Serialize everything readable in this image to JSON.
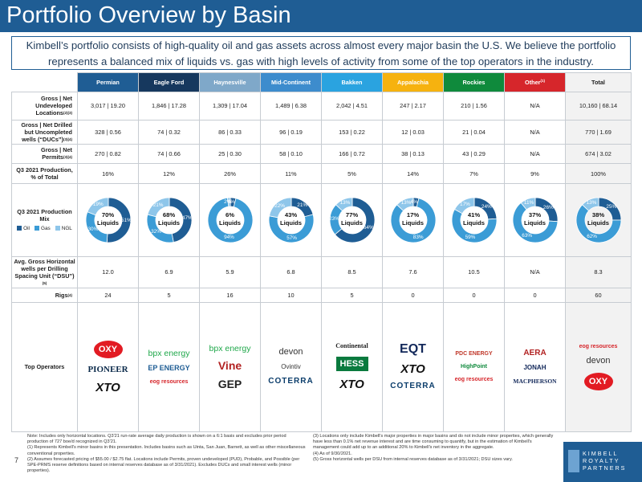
{
  "header": {
    "title": "Portfolio Overview by Basin"
  },
  "intro": "Kimbell’s portfolio consists of high-quality oil and gas assets across almost every major basin the U.S.  We believe the portfolio represents a balanced mix of liquids vs. gas with high levels of activity from some of the top operators in the industry.",
  "colors": {
    "title_bar": "#1f5d94",
    "oil": "#1f5d94",
    "gas": "#3b9cd6",
    "ngl": "#8ec6ea"
  },
  "basins": [
    {
      "name": "Permian",
      "color": "#1f5d94",
      "note": ""
    },
    {
      "name": "Eagle Ford",
      "color": "#16385e",
      "note": ""
    },
    {
      "name": "Haynesville",
      "color": "#7fa8c9",
      "note": ""
    },
    {
      "name": "Mid-Continent",
      "color": "#3d8ccd",
      "note": ""
    },
    {
      "name": "Bakken",
      "color": "#2aa3e0",
      "note": ""
    },
    {
      "name": "Appalachia",
      "color": "#f6b20f",
      "note": ""
    },
    {
      "name": "Rockies",
      "color": "#0f8a3c",
      "note": ""
    },
    {
      "name": "Other",
      "color": "#d6262b",
      "note": "(1)"
    }
  ],
  "total_label": "Total",
  "rows": {
    "undeveloped": {
      "label": "Gross | Net Undeveloped Locations",
      "note": "(2)(3)",
      "values": [
        "3,017 | 19.20",
        "1,846 | 17.28",
        "1,309 | 17.04",
        "1,489 | 6.38",
        "2,042 | 4.51",
        "247 | 2.17",
        "210 | 1.56",
        "N/A",
        "10,160 | 68.14"
      ]
    },
    "ducs": {
      "label": "Gross | Net Drilled but Uncompleted wells (“DUCs”)",
      "note": "(3)(4)",
      "values": [
        "328 | 0.56",
        "74 | 0.32",
        "86 | 0.33",
        "96 | 0.19",
        "153 | 0.22",
        "12 | 0.03",
        "21 | 0.04",
        "N/A",
        "770 | 1.69"
      ]
    },
    "permits": {
      "label": "Gross | Net Permits",
      "note": "(3)(4)",
      "values": [
        "270 | 0.82",
        "74 | 0.66",
        "25 | 0.30",
        "58 | 0.10",
        "166 | 0.72",
        "38 | 0.13",
        "43 | 0.29",
        "N/A",
        "674 | 3.02"
      ]
    },
    "production": {
      "label": "Q3 2021 Production, % of Total",
      "note": "",
      "values": [
        "16%",
        "12%",
        "26%",
        "11%",
        "5%",
        "14%",
        "7%",
        "9%",
        "100%"
      ]
    },
    "mix": {
      "label": "Q3 2021 Production Mix",
      "legend": [
        "Oil",
        "Gas",
        "NGL"
      ],
      "center_word": "Liquids",
      "items": [
        {
          "liquids": "70%",
          "oil": 51,
          "gas": 30,
          "ngl": 19,
          "oil_label": "51%",
          "gas_label": "30%",
          "ngl_label": "19%"
        },
        {
          "liquids": "68%",
          "oil": 47,
          "gas": 32,
          "ngl": 21,
          "oil_label": "47%",
          "gas_label": "32%",
          "ngl_label": "21%"
        },
        {
          "liquids": "6%",
          "oil": 4,
          "gas": 94,
          "ngl": 2,
          "oil_label": "4%",
          "gas_label": "94%",
          "ngl_label": "2%"
        },
        {
          "liquids": "43%",
          "oil": 21,
          "gas": 57,
          "ngl": 22,
          "oil_label": "21%",
          "gas_label": "57%",
          "ngl_label": "22%"
        },
        {
          "liquids": "77%",
          "oil": 64,
          "gas": 23,
          "ngl": 13,
          "oil_label": "64%",
          "gas_label": "23%",
          "ngl_label": "13%"
        },
        {
          "liquids": "17%",
          "oil": 4,
          "gas": 83,
          "ngl": 13,
          "oil_label": "4%",
          "gas_label": "83%",
          "ngl_label": "13%"
        },
        {
          "liquids": "41%",
          "oil": 24,
          "gas": 59,
          "ngl": 17,
          "oil_label": "24%",
          "gas_label": "59%",
          "ngl_label": "17%"
        },
        {
          "liquids": "37%",
          "oil": 26,
          "gas": 63,
          "ngl": 11,
          "oil_label": "26%",
          "gas_label": "63%",
          "ngl_label": "11%"
        },
        {
          "liquids": "38%",
          "oil": 25,
          "gas": 62,
          "ngl": 13,
          "oil_label": "25%",
          "gas_label": "62%",
          "ngl_label": "13%"
        }
      ]
    },
    "dsu": {
      "label": "Avg. Gross Horizontal wells per Drilling Spacing Unit (“DSU”)",
      "note": "(5)",
      "values": [
        "12.0",
        "6.9",
        "5.9",
        "6.8",
        "8.5",
        "7.6",
        "10.5",
        "N/A",
        "8.3"
      ]
    },
    "rigs": {
      "label": "Rigs",
      "note": "(4)",
      "values": [
        "24",
        "5",
        "16",
        "10",
        "5",
        "0",
        "0",
        "0",
        "60"
      ]
    },
    "operators": {
      "label": "Top Operators",
      "items": [
        [
          "OXY",
          "PIONEER",
          "XTO"
        ],
        [
          "bpx energy",
          "EP ENERGY",
          "eog resources"
        ],
        [
          "bpx energy",
          "Vine",
          "GEP"
        ],
        [
          "devon",
          "Ovintiv",
          "COTERRA"
        ],
        [
          "Continental",
          "HESS",
          "XTO"
        ],
        [
          "EQT",
          "XTO",
          "COTERRA"
        ],
        [
          "PDC ENERGY",
          "HighPoint",
          "eog resources"
        ],
        [
          "AERA",
          "JONAH",
          "MACPHERSON"
        ],
        [
          "eog resources",
          "devon",
          "OXY"
        ]
      ]
    }
  },
  "footnotes": {
    "note": "Note: Includes only horizontal locations. Q3'21 run-rate average daily production is shown on a 6:1 basis and excludes prior period production of 727 boe/d recognized in Q3'21.",
    "f1": "(1)   Represents Kimbell's minor basins in this presentation. Includes basins such as Uinta, San Juan, Barnett, as well as other miscellaneous conventional properties.",
    "f2": "(2)   Assumes forecasted pricing of $55.00 / $2.75 flat. Locations include Permits, proven undeveloped (PUD), Probable, and Possible (per SPE-PRMS reserve definitions based on internal reserves database as of 3/31/2021).  Excludes DUCs and small interest wells (minor properties).",
    "f3": "(3)   Locations only include Kimbell's major properties in major basins and do not include minor properties, which generally have less than 0.1% net revenue interest and are time consuming to quantify, but in the estimation of Kimbell's management could add up to an additional 20% to Kimbell's net inventory in the aggregate.",
    "f4": "(4)   As of 9/30/2021.",
    "f5": "(5)   Gross horizontal wells per DSU from internal reserves database as of 3/31/2021; DSU sizes vary."
  },
  "page_number": "7",
  "brand": {
    "line1": "KIMBELL",
    "line2": "ROYALTY",
    "line3": "PARTNERS"
  }
}
